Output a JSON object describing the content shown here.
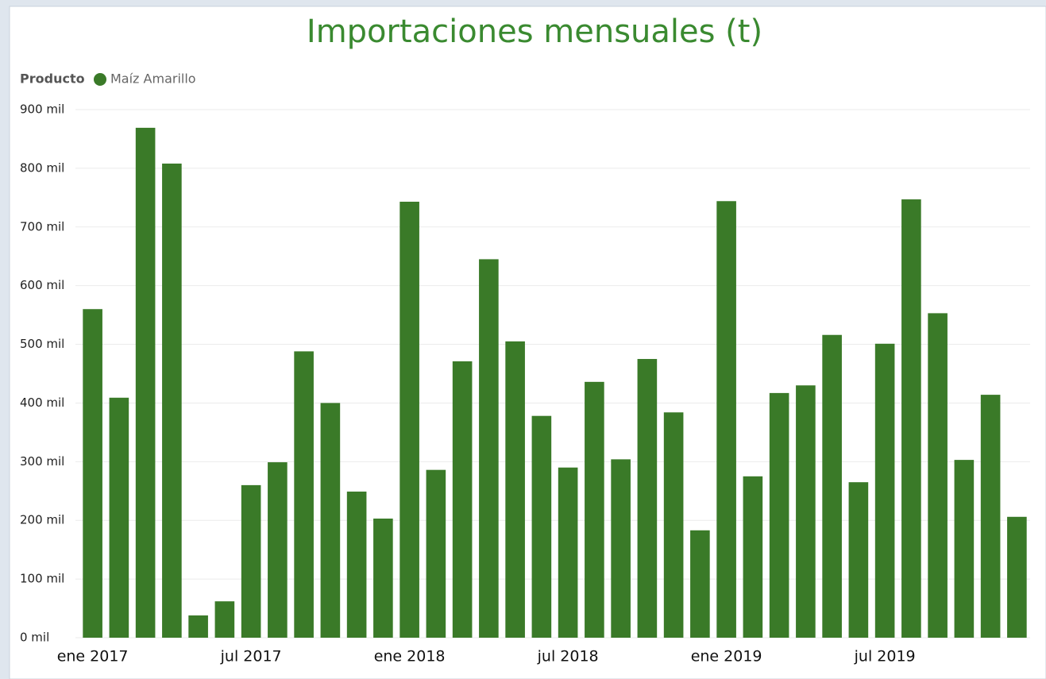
{
  "chart_data": {
    "type": "bar",
    "title": "Importaciones mensuales (t)",
    "legend_title": "Producto",
    "categories": [
      "ene 2017",
      null,
      null,
      null,
      null,
      null,
      "jul 2017",
      null,
      null,
      null,
      null,
      null,
      "ene 2018",
      null,
      null,
      null,
      null,
      null,
      "jul 2018",
      null,
      null,
      null,
      null,
      null,
      "ene 2019",
      null,
      null,
      null,
      null,
      null,
      "jul 2019",
      null,
      null,
      null,
      null,
      null
    ],
    "series": [
      {
        "name": "Maíz Amarillo",
        "color": "#3a7a28",
        "values": [
          560000,
          409000,
          869000,
          808000,
          38000,
          62000,
          260000,
          299000,
          488000,
          400000,
          249000,
          203000,
          743000,
          286000,
          471000,
          645000,
          505000,
          378000,
          290000,
          436000,
          304000,
          475000,
          384000,
          183000,
          744000,
          275000,
          417000,
          430000,
          516000,
          265000,
          501000,
          747000,
          553000,
          303000,
          414000,
          206000
        ]
      }
    ],
    "ylim": [
      0,
      900000
    ],
    "yticks": [
      {
        "value": 0,
        "label": "0 mil"
      },
      {
        "value": 100000,
        "label": "100 mil"
      },
      {
        "value": 200000,
        "label": "200 mil"
      },
      {
        "value": 300000,
        "label": "300 mil"
      },
      {
        "value": 400000,
        "label": "400 mil"
      },
      {
        "value": 500000,
        "label": "500 mil"
      },
      {
        "value": 600000,
        "label": "600 mil"
      },
      {
        "value": 700000,
        "label": "700 mil"
      },
      {
        "value": 800000,
        "label": "800 mil"
      },
      {
        "value": 900000,
        "label": "900 mil"
      }
    ],
    "grid": true
  }
}
